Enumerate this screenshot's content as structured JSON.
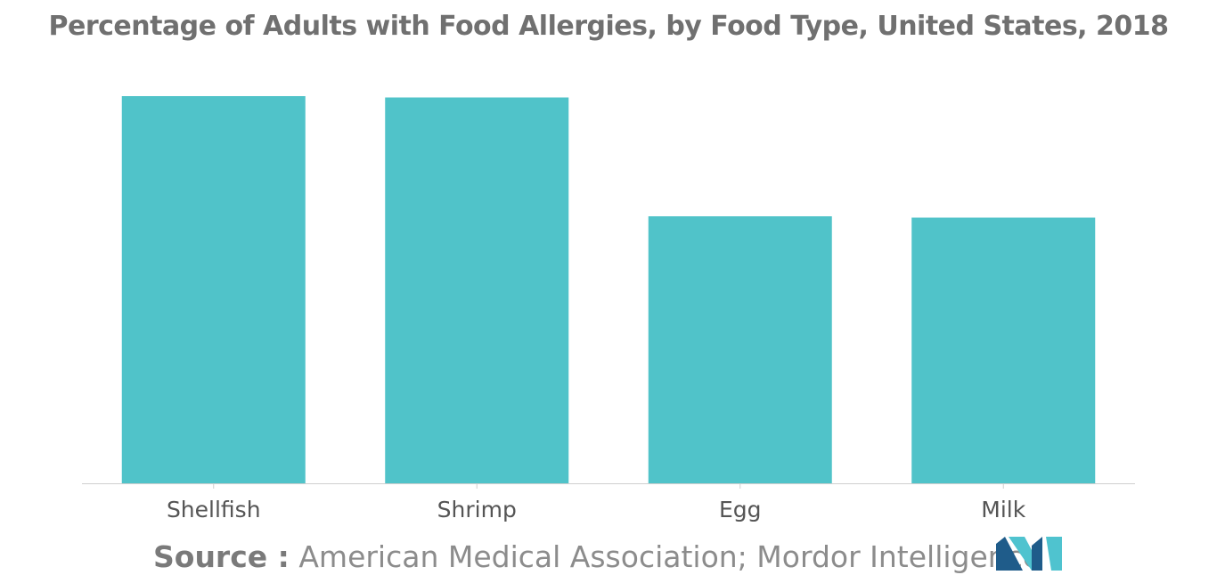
{
  "chart_data": {
    "type": "bar",
    "title": "Percentage of Adults with Food Allergies, by Food Type, United States, 2018",
    "categories": [
      "Shellfish",
      "Shrimp",
      "Egg",
      "Milk"
    ],
    "values": [
      2.9,
      2.89,
      2.0,
      1.99
    ],
    "ylim": [
      0,
      3.0
    ],
    "xlabel": "",
    "ylabel": "",
    "grid": false,
    "bar_color": "#50c3c9",
    "axis_color": "#cfcfcf"
  },
  "source": {
    "label": "Source :",
    "text": "American Medical Association; Mordor Intelligence"
  },
  "logo": {
    "icon": "mordor-intelligence-logo-icon",
    "colors": [
      "#1f5c8a",
      "#4fc3cf"
    ]
  }
}
